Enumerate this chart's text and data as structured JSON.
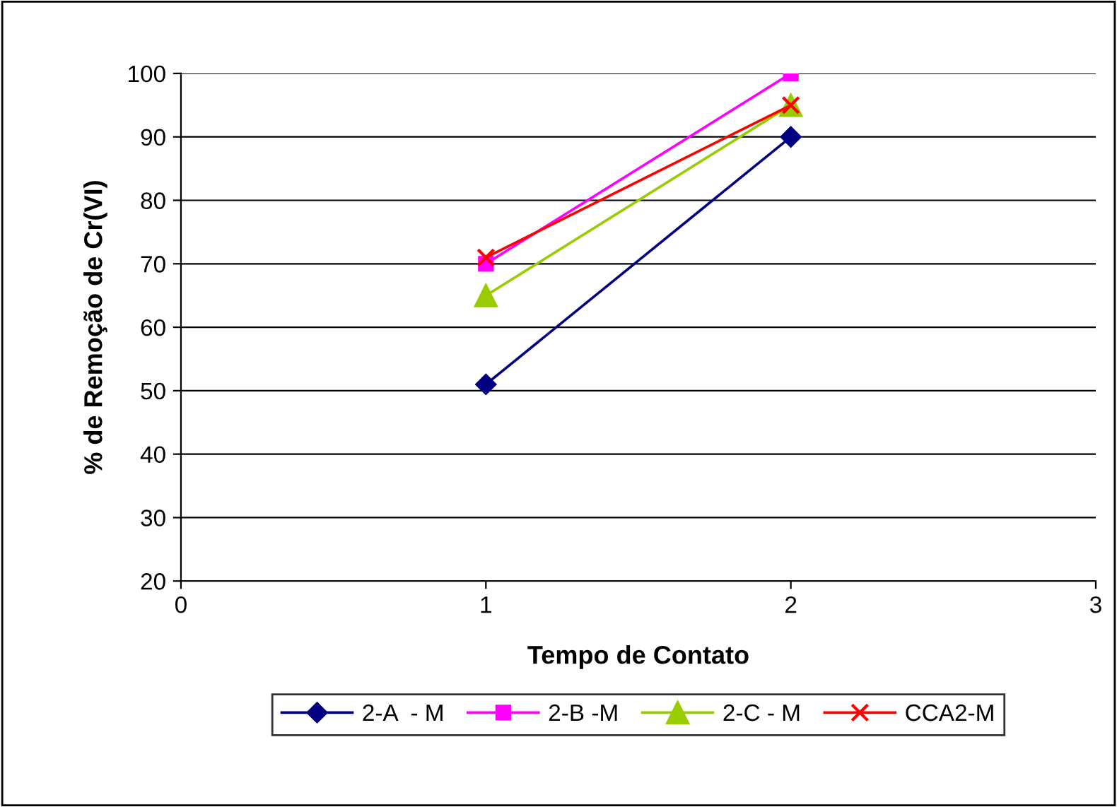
{
  "chart_data": {
    "type": "line",
    "xlabel": "Tempo de Contato",
    "ylabel": "% de Remoção de Cr(VI)",
    "x": [
      1,
      2
    ],
    "series": [
      {
        "name": "2-A  - M",
        "color": "#000080",
        "values": [
          51,
          90
        ],
        "marker": "diamond"
      },
      {
        "name": "2-B -M",
        "color": "#ff00ff",
        "values": [
          70,
          100
        ],
        "marker": "square"
      },
      {
        "name": "2-C - M",
        "color": "#99cc00",
        "values": [
          65,
          95
        ],
        "marker": "triangle"
      },
      {
        "name": "CCA2-M",
        "color": "#ff0000",
        "values": [
          71,
          95
        ],
        "marker": "cross"
      }
    ],
    "xlim": [
      0,
      3
    ],
    "xticks": [
      0,
      1,
      2,
      3
    ],
    "ylim": [
      20,
      100
    ],
    "yticks": [
      20,
      30,
      40,
      50,
      60,
      70,
      80,
      90,
      100
    ],
    "grid": "y",
    "legend": "bottom"
  }
}
